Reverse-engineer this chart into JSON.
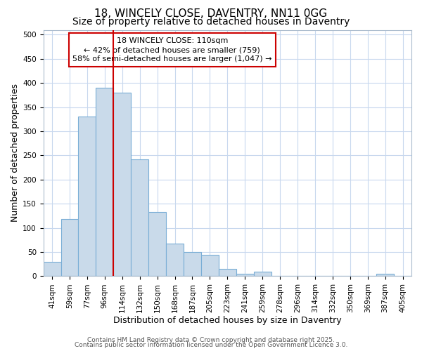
{
  "title_line1": "18, WINCELY CLOSE, DAVENTRY, NN11 0GG",
  "title_line2": "Size of property relative to detached houses in Daventry",
  "xlabel": "Distribution of detached houses by size in Daventry",
  "ylabel": "Number of detached properties",
  "bin_labels": [
    "41sqm",
    "59sqm",
    "77sqm",
    "96sqm",
    "114sqm",
    "132sqm",
    "150sqm",
    "168sqm",
    "187sqm",
    "205sqm",
    "223sqm",
    "241sqm",
    "259sqm",
    "278sqm",
    "296sqm",
    "314sqm",
    "332sqm",
    "350sqm",
    "369sqm",
    "387sqm",
    "405sqm"
  ],
  "bar_values": [
    30,
    118,
    330,
    390,
    380,
    242,
    133,
    68,
    50,
    45,
    15,
    5,
    10,
    0,
    0,
    0,
    0,
    0,
    0,
    5,
    0
  ],
  "bar_color": "#c9daea",
  "bar_edge_color": "#7aaed6",
  "bar_edge_width": 0.8,
  "vline_color": "#cc0000",
  "annotation_line1": "18 WINCELY CLOSE: 110sqm",
  "annotation_line2": "← 42% of detached houses are smaller (759)",
  "annotation_line3": "58% of semi-detached houses are larger (1,047) →",
  "annotation_box_color": "#cc0000",
  "ylim": [
    0,
    510
  ],
  "yticks": [
    0,
    50,
    100,
    150,
    200,
    250,
    300,
    350,
    400,
    450,
    500
  ],
  "grid_color": "#c8d8ee",
  "bg_color": "#ffffff",
  "footer_line1": "Contains HM Land Registry data © Crown copyright and database right 2025.",
  "footer_line2": "Contains public sector information licensed under the Open Government Licence 3.0.",
  "title_fontsize": 11,
  "subtitle_fontsize": 10,
  "axis_label_fontsize": 9,
  "tick_fontsize": 7.5,
  "annotation_fontsize": 8,
  "footer_fontsize": 6.5
}
